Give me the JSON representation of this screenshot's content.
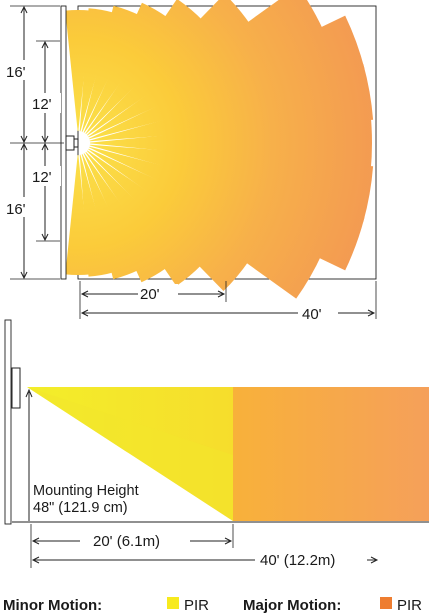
{
  "top_view": {
    "left_dims": {
      "outer": "16'",
      "inner": "12'"
    },
    "bottom_dims": {
      "near": "20'",
      "far": "40'"
    },
    "colors": {
      "beam_near": "#fbd230",
      "beam_far": "#f5a34f",
      "frame": "#222222"
    }
  },
  "side_view": {
    "mounting_label_1": "Mounting Height",
    "mounting_label_2": "48\" (121.9 cm)",
    "near_dim": "20' (6.1m)",
    "far_dim": "40' (12.2m)",
    "colors": {
      "minor": "#f4ea2a",
      "major": "#f5a352"
    }
  },
  "legend": {
    "minor_label": "Minor Motion:",
    "minor_item": "PIR",
    "minor_color": "#f7ea1e",
    "major_label": "Major Motion:",
    "major_item": "PIR",
    "major_color": "#ee7d30"
  }
}
